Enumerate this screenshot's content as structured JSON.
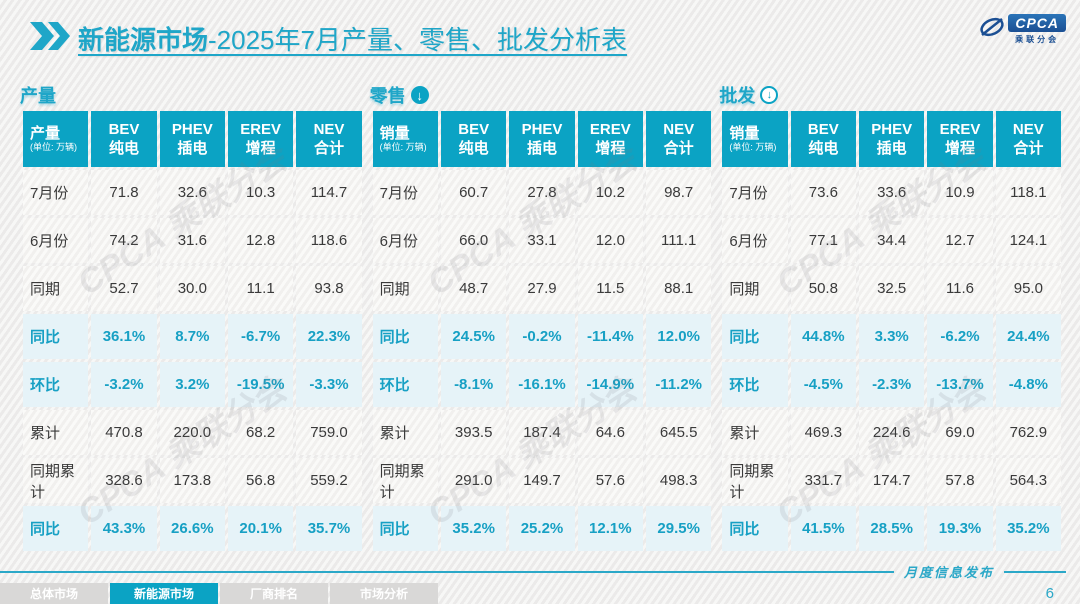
{
  "header": {
    "title_bold": "新能源市场",
    "title_rest": "-2025年7月产量、零售、批发分析表",
    "logo": {
      "text": "CPCA",
      "subtext": "乘联分会"
    }
  },
  "colors": {
    "accent_teal": "#0ba3c4",
    "title_teal": "#1fa6c8",
    "percent_row_bg": "#e6f3f8",
    "data_row_bg": "#f5f4f2",
    "tab_inactive_bg": "#d9d8d7",
    "logo_blue": "#1b4f93"
  },
  "watermark_text": "CPCA 乘联分会",
  "tables": [
    {
      "label": "产量",
      "arrow_icon": "none",
      "first_col_header": "产量",
      "unit": "(单位: 万辆)",
      "columns": [
        {
          "en": "BEV",
          "zh": "纯电"
        },
        {
          "en": "PHEV",
          "zh": "插电"
        },
        {
          "en": "EREV",
          "zh": "增程"
        },
        {
          "en": "NEV",
          "zh": "合计"
        }
      ],
      "rows": [
        {
          "label": "7月份",
          "type": "data",
          "values": [
            "71.8",
            "32.6",
            "10.3",
            "114.7"
          ]
        },
        {
          "label": "6月份",
          "type": "data",
          "values": [
            "74.2",
            "31.6",
            "12.8",
            "118.6"
          ]
        },
        {
          "label": "同期",
          "type": "data",
          "values": [
            "52.7",
            "30.0",
            "11.1",
            "93.8"
          ]
        },
        {
          "label": "同比",
          "type": "percent",
          "values": [
            "36.1%",
            "8.7%",
            "-6.7%",
            "22.3%"
          ]
        },
        {
          "label": "环比",
          "type": "percent",
          "values": [
            "-3.2%",
            "3.2%",
            "-19.5%",
            "-3.3%"
          ]
        },
        {
          "label": "累计",
          "type": "data",
          "values": [
            "470.8",
            "220.0",
            "68.2",
            "759.0"
          ]
        },
        {
          "label": "同期累计",
          "type": "data",
          "values": [
            "328.6",
            "173.8",
            "56.8",
            "559.2"
          ]
        },
        {
          "label": "同比",
          "type": "percent",
          "values": [
            "43.3%",
            "26.6%",
            "20.1%",
            "35.7%"
          ]
        }
      ]
    },
    {
      "label": "零售",
      "arrow_icon": "solid-down",
      "first_col_header": "销量",
      "unit": "(单位: 万辆)",
      "columns": [
        {
          "en": "BEV",
          "zh": "纯电"
        },
        {
          "en": "PHEV",
          "zh": "插电"
        },
        {
          "en": "EREV",
          "zh": "增程"
        },
        {
          "en": "NEV",
          "zh": "合计"
        }
      ],
      "rows": [
        {
          "label": "7月份",
          "type": "data",
          "values": [
            "60.7",
            "27.8",
            "10.2",
            "98.7"
          ]
        },
        {
          "label": "6月份",
          "type": "data",
          "values": [
            "66.0",
            "33.1",
            "12.0",
            "111.1"
          ]
        },
        {
          "label": "同期",
          "type": "data",
          "values": [
            "48.7",
            "27.9",
            "11.5",
            "88.1"
          ]
        },
        {
          "label": "同比",
          "type": "percent",
          "values": [
            "24.5%",
            "-0.2%",
            "-11.4%",
            "12.0%"
          ]
        },
        {
          "label": "环比",
          "type": "percent",
          "values": [
            "-8.1%",
            "-16.1%",
            "-14.9%",
            "-11.2%"
          ]
        },
        {
          "label": "累计",
          "type": "data",
          "values": [
            "393.5",
            "187.4",
            "64.6",
            "645.5"
          ]
        },
        {
          "label": "同期累计",
          "type": "data",
          "values": [
            "291.0",
            "149.7",
            "57.6",
            "498.3"
          ]
        },
        {
          "label": "同比",
          "type": "percent",
          "values": [
            "35.2%",
            "25.2%",
            "12.1%",
            "29.5%"
          ]
        }
      ]
    },
    {
      "label": "批发",
      "arrow_icon": "outline-down",
      "first_col_header": "销量",
      "unit": "(单位: 万辆)",
      "columns": [
        {
          "en": "BEV",
          "zh": "纯电"
        },
        {
          "en": "PHEV",
          "zh": "插电"
        },
        {
          "en": "EREV",
          "zh": "增程"
        },
        {
          "en": "NEV",
          "zh": "合计"
        }
      ],
      "rows": [
        {
          "label": "7月份",
          "type": "data",
          "values": [
            "73.6",
            "33.6",
            "10.9",
            "118.1"
          ]
        },
        {
          "label": "6月份",
          "type": "data",
          "values": [
            "77.1",
            "34.4",
            "12.7",
            "124.1"
          ]
        },
        {
          "label": "同期",
          "type": "data",
          "values": [
            "50.8",
            "32.5",
            "11.6",
            "95.0"
          ]
        },
        {
          "label": "同比",
          "type": "percent",
          "values": [
            "44.8%",
            "3.3%",
            "-6.2%",
            "24.4%"
          ]
        },
        {
          "label": "环比",
          "type": "percent",
          "values": [
            "-4.5%",
            "-2.3%",
            "-13.7%",
            "-4.8%"
          ]
        },
        {
          "label": "累计",
          "type": "data",
          "values": [
            "469.3",
            "224.6",
            "69.0",
            "762.9"
          ]
        },
        {
          "label": "同期累计",
          "type": "data",
          "values": [
            "331.7",
            "174.7",
            "57.8",
            "564.3"
          ]
        },
        {
          "label": "同比",
          "type": "percent",
          "values": [
            "41.5%",
            "28.5%",
            "19.3%",
            "35.2%"
          ]
        }
      ]
    }
  ],
  "footer": {
    "tabs": [
      {
        "label": "总体市场",
        "active": false
      },
      {
        "label": "新能源市场",
        "active": true
      },
      {
        "label": "厂商排名",
        "active": false
      },
      {
        "label": "市场分析",
        "active": false
      }
    ],
    "publication": "月度信息发布",
    "page": "6"
  }
}
